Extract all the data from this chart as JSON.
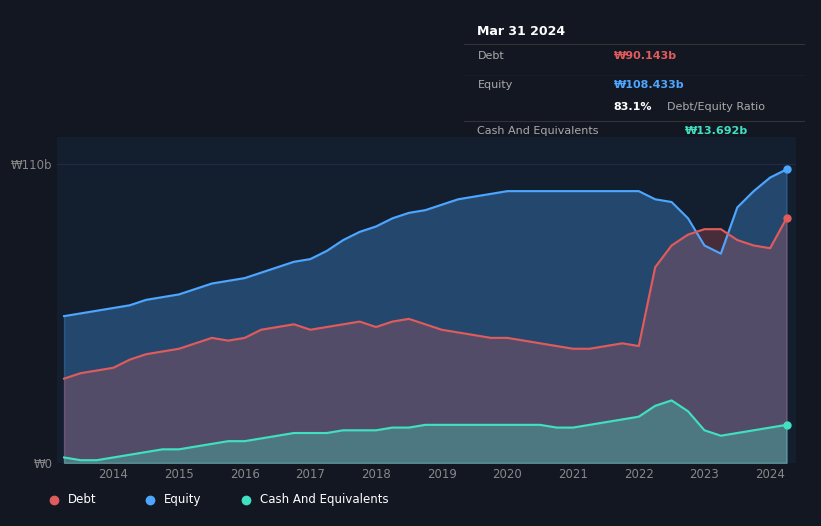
{
  "bg_color": "#131722",
  "plot_bg_color": "#131e2e",
  "title": "Mar 31 2024",
  "tooltip_debt": "₩90.143b",
  "tooltip_equity": "₩108.433b",
  "tooltip_ratio": "83.1%",
  "tooltip_ratio_label": "Debt/Equity Ratio",
  "tooltip_cash": "₩13.692b",
  "ylabel_top": "₩110b",
  "ylabel_bottom": "₩0",
  "x_ticks": [
    "2014",
    "2015",
    "2016",
    "2017",
    "2018",
    "2019",
    "2020",
    "2021",
    "2022",
    "2023",
    "2024"
  ],
  "debt_color": "#e05c5c",
  "equity_color": "#4da6ff",
  "cash_color": "#40e0c0",
  "line_width": 1.5,
  "ylim": [
    0,
    120
  ],
  "equity_data": {
    "x": [
      2013.25,
      2013.5,
      2013.75,
      2014.0,
      2014.25,
      2014.5,
      2014.75,
      2015.0,
      2015.25,
      2015.5,
      2015.75,
      2016.0,
      2016.25,
      2016.5,
      2016.75,
      2017.0,
      2017.25,
      2017.5,
      2017.75,
      2018.0,
      2018.25,
      2018.5,
      2018.75,
      2019.0,
      2019.25,
      2019.5,
      2019.75,
      2020.0,
      2020.25,
      2020.5,
      2020.75,
      2021.0,
      2021.25,
      2021.5,
      2021.75,
      2022.0,
      2022.25,
      2022.5,
      2022.75,
      2023.0,
      2023.25,
      2023.5,
      2023.75,
      2024.0,
      2024.25
    ],
    "y": [
      54,
      55,
      56,
      57,
      58,
      60,
      61,
      62,
      64,
      66,
      67,
      68,
      70,
      72,
      74,
      75,
      78,
      82,
      85,
      87,
      90,
      92,
      93,
      95,
      97,
      98,
      99,
      100,
      100,
      100,
      100,
      100,
      100,
      100,
      100,
      100,
      97,
      96,
      90,
      80,
      77,
      94,
      100,
      105,
      108
    ]
  },
  "debt_data": {
    "x": [
      2013.25,
      2013.5,
      2013.75,
      2014.0,
      2014.25,
      2014.5,
      2014.75,
      2015.0,
      2015.25,
      2015.5,
      2015.75,
      2016.0,
      2016.25,
      2016.5,
      2016.75,
      2017.0,
      2017.25,
      2017.5,
      2017.75,
      2018.0,
      2018.25,
      2018.5,
      2018.75,
      2019.0,
      2019.25,
      2019.5,
      2019.75,
      2020.0,
      2020.25,
      2020.5,
      2020.75,
      2021.0,
      2021.25,
      2021.5,
      2021.75,
      2022.0,
      2022.25,
      2022.5,
      2022.75,
      2023.0,
      2023.25,
      2023.5,
      2023.75,
      2024.0,
      2024.25
    ],
    "y": [
      31,
      33,
      34,
      35,
      38,
      40,
      41,
      42,
      44,
      46,
      45,
      46,
      49,
      50,
      51,
      49,
      50,
      51,
      52,
      50,
      52,
      53,
      51,
      49,
      48,
      47,
      46,
      46,
      45,
      44,
      43,
      42,
      42,
      43,
      44,
      43,
      72,
      80,
      84,
      86,
      86,
      82,
      80,
      79,
      90
    ]
  },
  "cash_data": {
    "x": [
      2013.25,
      2013.5,
      2013.75,
      2014.0,
      2014.25,
      2014.5,
      2014.75,
      2015.0,
      2015.25,
      2015.5,
      2015.75,
      2016.0,
      2016.25,
      2016.5,
      2016.75,
      2017.0,
      2017.25,
      2017.5,
      2017.75,
      2018.0,
      2018.25,
      2018.5,
      2018.75,
      2019.0,
      2019.25,
      2019.5,
      2019.75,
      2020.0,
      2020.25,
      2020.5,
      2020.75,
      2021.0,
      2021.25,
      2021.5,
      2021.75,
      2022.0,
      2022.25,
      2022.5,
      2022.75,
      2023.0,
      2023.25,
      2023.5,
      2023.75,
      2024.0,
      2024.25
    ],
    "y": [
      2,
      1,
      1,
      2,
      3,
      4,
      5,
      5,
      6,
      7,
      8,
      8,
      9,
      10,
      11,
      11,
      11,
      12,
      12,
      12,
      13,
      13,
      14,
      14,
      14,
      14,
      14,
      14,
      14,
      14,
      13,
      13,
      14,
      15,
      16,
      17,
      21,
      23,
      19,
      12,
      10,
      11,
      12,
      13,
      14
    ]
  }
}
